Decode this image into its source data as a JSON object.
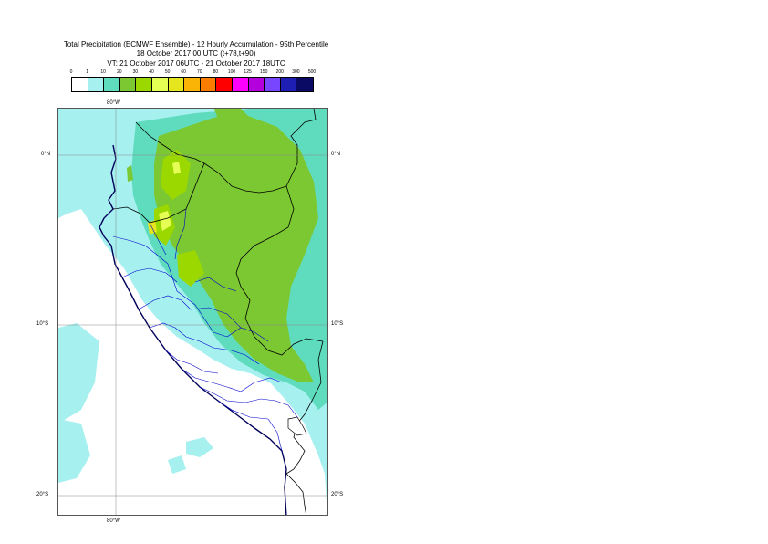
{
  "title": {
    "line1": "Total Precipitation (ECMWF Ensemble) - 12 Hourly Accumulation - 95th Percentile",
    "line2": "18 October 2017 00 UTC (t+78,t+90)",
    "line3": "VT: 21 October 2017 06UTC - 21 October 2017 18UTC"
  },
  "legend": {
    "ticks": [
      "0",
      "1",
      "10",
      "20",
      "30",
      "40",
      "50",
      "60",
      "70",
      "80",
      "100",
      "125",
      "150",
      "200",
      "300",
      "500"
    ],
    "colors": [
      "#ffffff",
      "#a6f0f0",
      "#5fdcbe",
      "#7cc832",
      "#9bd800",
      "#e6ff55",
      "#e6e61e",
      "#fab405",
      "#fa7d00",
      "#ff0000",
      "#ff00ff",
      "#b400dc",
      "#7846ff",
      "#1e1eb4",
      "#0a0a64"
    ]
  },
  "axes": {
    "lon_top": "80°W",
    "lon_bottom": "80°W",
    "lat_left": [
      "0°N",
      "10°S",
      "20°S"
    ],
    "lat_right": [
      "0°N",
      "10°S",
      "20°S"
    ]
  },
  "colors": {
    "land": "#ffffff",
    "ocean_precip": "#a6f0f0",
    "precip_10_20": "#5fdcbe",
    "precip_20_30": "#7cc832",
    "precip_30_40": "#9bd800",
    "precip_40_50": "#e6ff55",
    "precip_50_60": "#e6e61e",
    "coast": "#00005a",
    "admin_border": "#0000cc",
    "country_border": "#000000"
  }
}
